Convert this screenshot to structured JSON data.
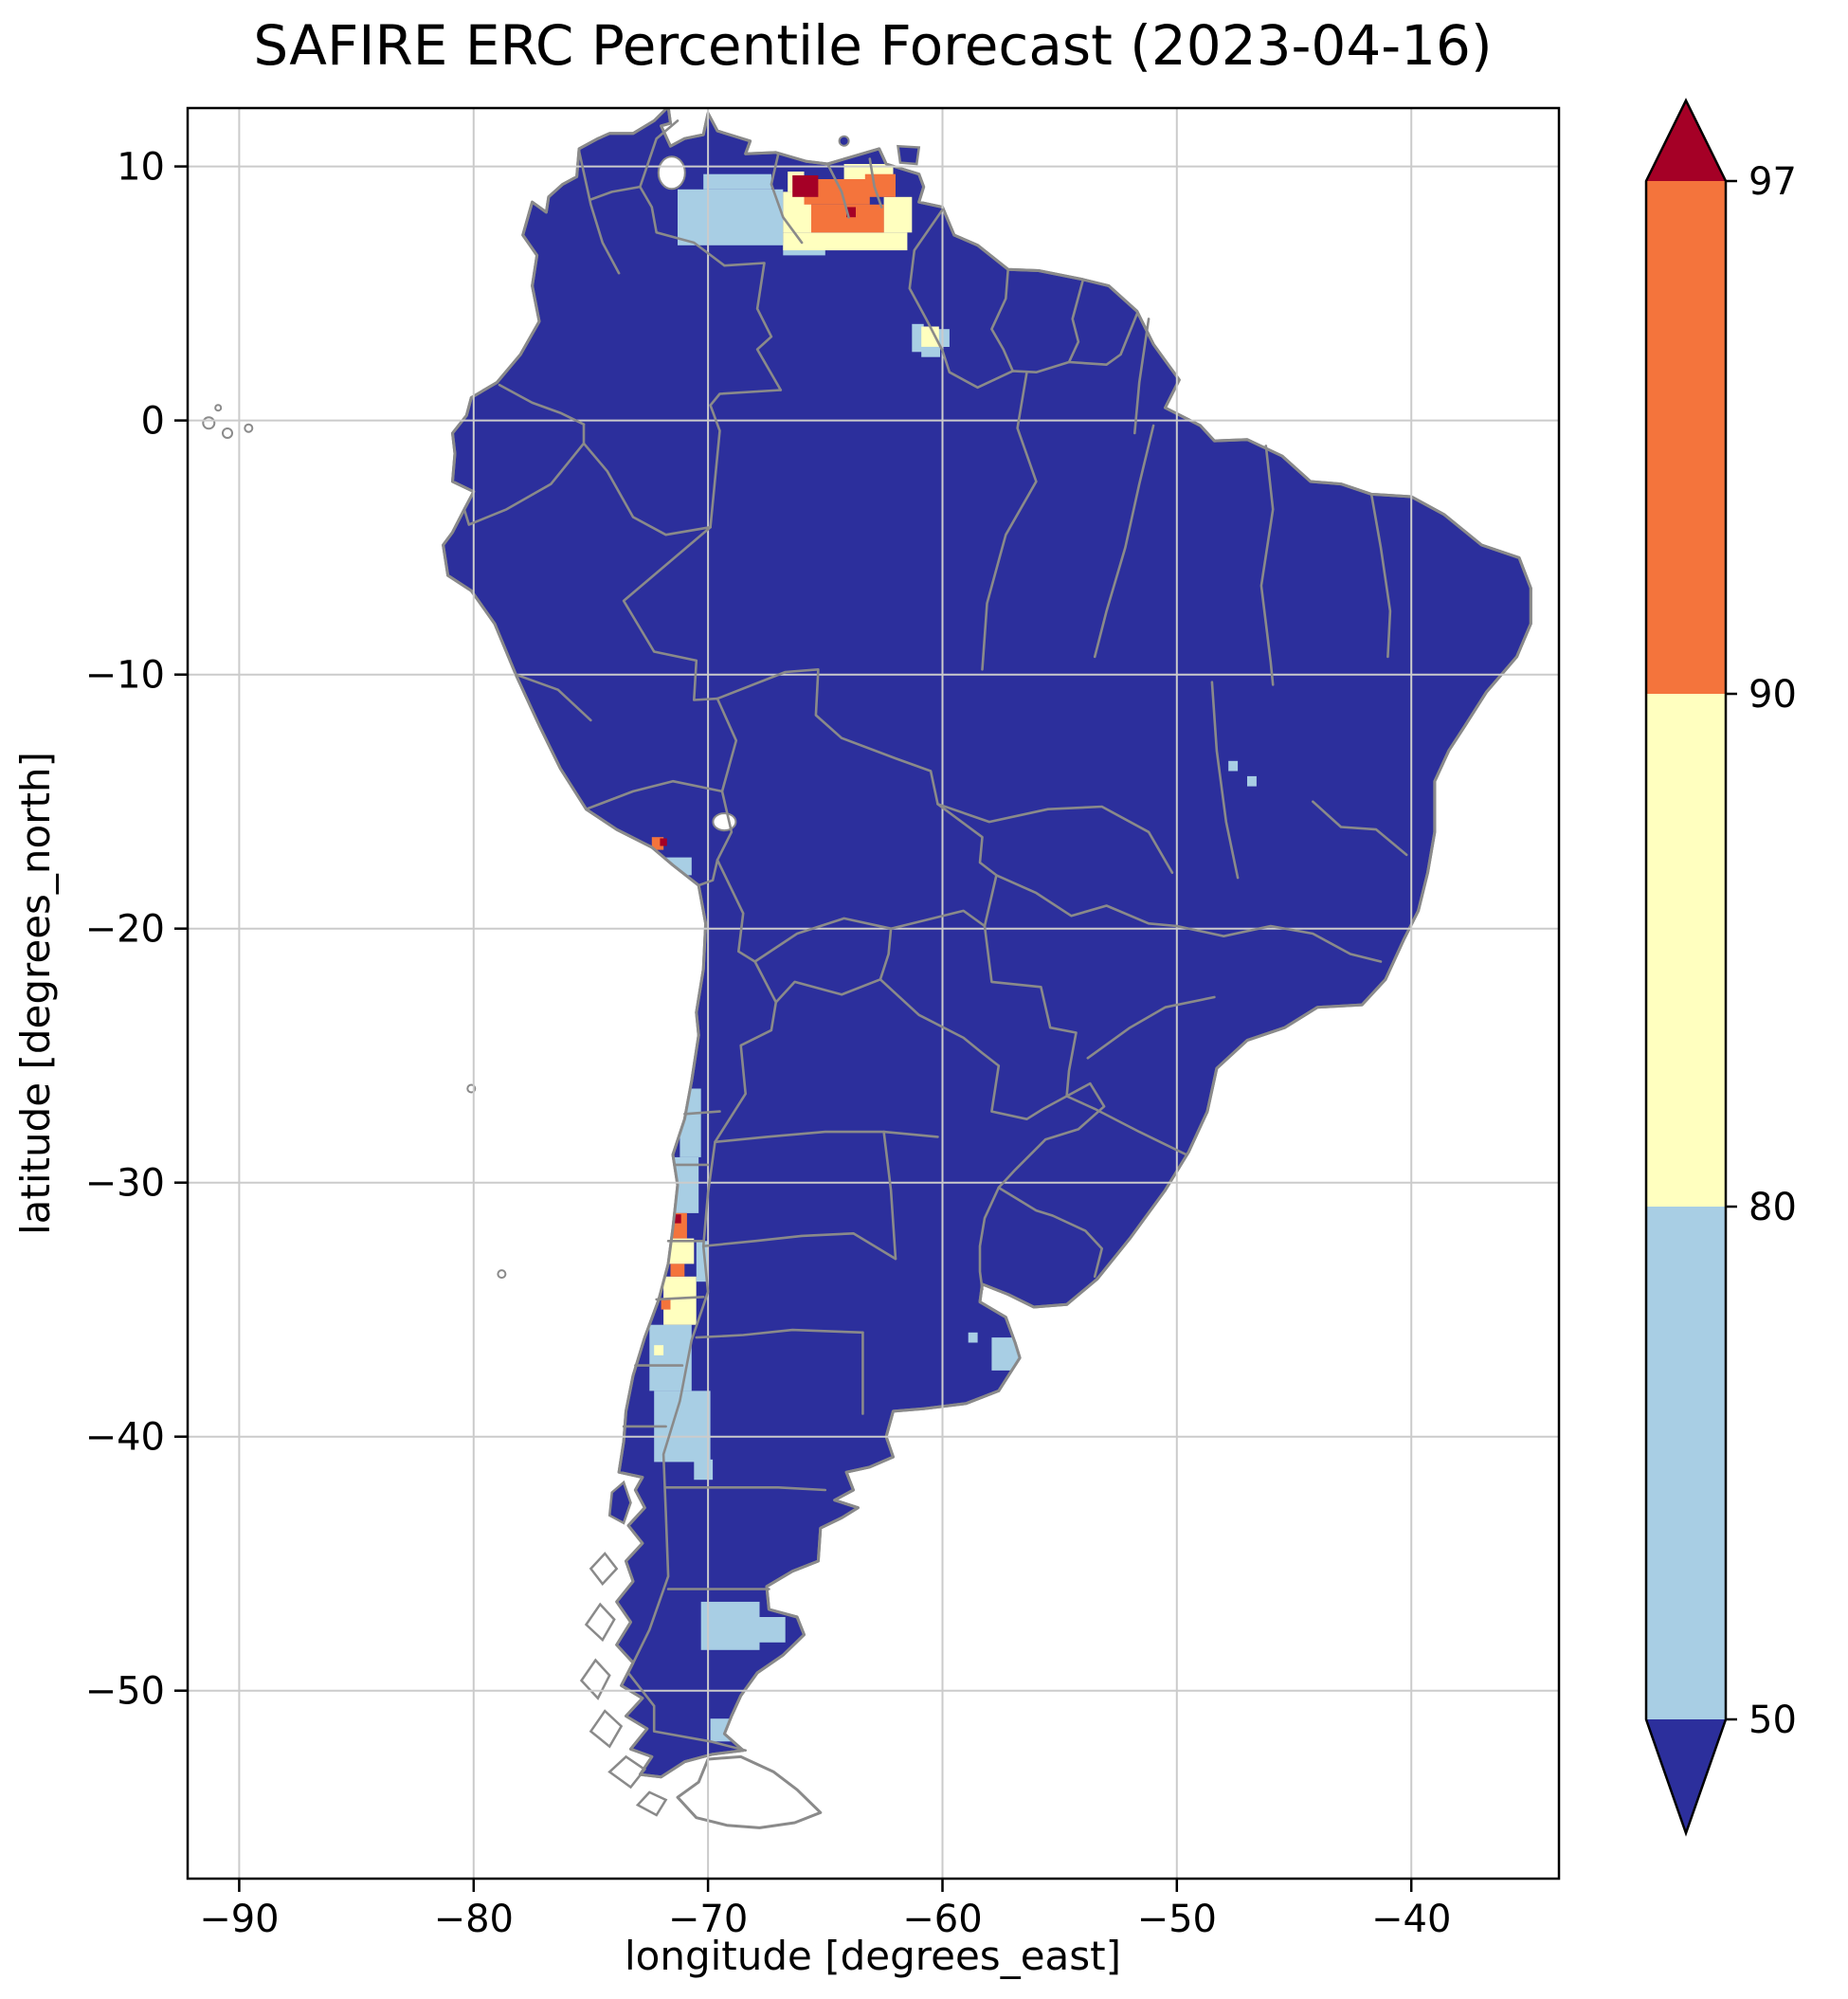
{
  "title": "SAFIRE ERC Percentile Forecast (2023-04-16)",
  "axes": {
    "xlabel": "longitude [degrees_east]",
    "ylabel": "latitude [degrees_north]",
    "xticks": [
      {
        "value": -90,
        "label": "−90"
      },
      {
        "value": -80,
        "label": "−80"
      },
      {
        "value": -70,
        "label": "−70"
      },
      {
        "value": -60,
        "label": "−60"
      },
      {
        "value": -50,
        "label": "−50"
      },
      {
        "value": -40,
        "label": "−40"
      }
    ],
    "yticks": [
      {
        "value": 10,
        "label": "10"
      },
      {
        "value": 0,
        "label": "0"
      },
      {
        "value": -10,
        "label": "−10"
      },
      {
        "value": -20,
        "label": "−20"
      },
      {
        "value": -30,
        "label": "−30"
      },
      {
        "value": -40,
        "label": "−40"
      },
      {
        "value": -50,
        "label": "−50"
      }
    ],
    "xlim_deg": [
      -92.2,
      -33.7
    ],
    "ylim_deg": [
      -57.4,
      12.3
    ],
    "grid": true
  },
  "colorbar": {
    "orientation": "vertical",
    "extend": "both",
    "tick_labels": [
      "97",
      "90",
      "80",
      "50"
    ],
    "boundaries": [
      97,
      90,
      80,
      50
    ],
    "segment_colors_top_to_bottom": [
      "#a50026",
      "#f4743c",
      "#ffffbf",
      "#a8cee4",
      "#2c2f9c"
    ]
  },
  "map_style": {
    "land_fill": "#2c2f9c",
    "coast_color": "#8a8a8a",
    "border_color": "#8a8a8a",
    "grid_color": "#cbcbcb",
    "ocean": "#ffffff",
    "frame_color": "#000000"
  },
  "chart_data": {
    "type": "heatmap",
    "region": "South America",
    "title": "SAFIRE ERC Percentile Forecast (2023-04-16)",
    "xlabel": "longitude [degrees_east]",
    "ylabel": "latitude [degrees_north]",
    "xlim": [
      -92.2,
      -33.7
    ],
    "ylim": [
      -57.4,
      12.3
    ],
    "value_name": "ERC percentile",
    "levels": [
      50,
      80,
      90,
      97
    ],
    "colorbar_extend": "both",
    "legend_position": "right colorbar",
    "grid": true,
    "bands": [
      {
        "id": "under_50",
        "range": "< 50",
        "color": "#2c2f9c"
      },
      {
        "id": "50_80",
        "range": "50–80",
        "color": "#a8cee4"
      },
      {
        "id": "80_90",
        "range": "80–90",
        "color": "#ffffbf"
      },
      {
        "id": "90_97",
        "range": "90–97",
        "color": "#f4743c"
      },
      {
        "id": "over_97",
        "range": "> 97",
        "color": "#a50026"
      }
    ],
    "base_coverage": "all land below 50th percentile (dark blue) except listed regions",
    "regions": [
      {
        "area": "Colombia-Venezuela llanos",
        "band": "50_80",
        "rects": [
          [
            -71.3,
            6.9,
            -66.8,
            9.1
          ],
          [
            -70.2,
            9.1,
            -67.3,
            9.7
          ],
          [
            -66.8,
            6.5,
            -65.0,
            7.0
          ]
        ]
      },
      {
        "area": "central Venezuela",
        "band": "80_90",
        "rects": [
          [
            -66.8,
            6.7,
            -61.5,
            7.4
          ],
          [
            -66.8,
            7.4,
            -65.6,
            9.0
          ],
          [
            -62.5,
            7.4,
            -61.3,
            8.8
          ],
          [
            -64.2,
            9.4,
            -62.1,
            10.1
          ],
          [
            -66.6,
            9.0,
            -65.9,
            9.8
          ]
        ]
      },
      {
        "area": "central Venezuela",
        "band": "90_97",
        "rects": [
          [
            -65.6,
            7.4,
            -62.5,
            8.5
          ],
          [
            -65.9,
            8.5,
            -63.1,
            9.5
          ],
          [
            -63.3,
            8.8,
            -62.0,
            9.7
          ]
        ]
      },
      {
        "area": "central Venezuela hotspot",
        "band": "over_97",
        "rects": [
          [
            -66.4,
            8.8,
            -65.3,
            9.65
          ],
          [
            -64.1,
            8.0,
            -63.7,
            8.4
          ]
        ]
      },
      {
        "area": "Guyana-Roraima border spot",
        "band": "50_80",
        "rects": [
          [
            -61.3,
            2.7,
            -60.8,
            3.8
          ],
          [
            -60.2,
            2.9,
            -59.7,
            3.6
          ],
          [
            -60.9,
            2.5,
            -60.1,
            2.95
          ]
        ]
      },
      {
        "area": "Guyana-Roraima border spot",
        "band": "80_90",
        "rects": [
          [
            -60.9,
            2.9,
            -60.15,
            3.7
          ]
        ]
      },
      {
        "area": "southern Peru coast",
        "band": "90_97",
        "rects": [
          [
            -72.4,
            -16.9,
            -71.9,
            -16.4
          ]
        ]
      },
      {
        "area": "southern Peru coast",
        "band": "over_97",
        "rects": [
          [
            -72.05,
            -16.75,
            -71.75,
            -16.45
          ]
        ]
      },
      {
        "area": "southern Peru",
        "band": "50_80",
        "rects": [
          [
            -71.8,
            -17.9,
            -70.7,
            -17.2
          ]
        ]
      },
      {
        "area": "northern and central Chile strip",
        "band": "50_80",
        "rects": [
          [
            -71.2,
            -29.0,
            -70.3,
            -26.3
          ],
          [
            -71.9,
            -31.2,
            -70.4,
            -29.0
          ],
          [
            -70.5,
            -33.9,
            -70.0,
            -32.3
          ],
          [
            -72.5,
            -38.2,
            -70.7,
            -35.6
          ],
          [
            -72.3,
            -41.0,
            -69.9,
            -38.2
          ],
          [
            -70.6,
            -41.7,
            -69.8,
            -40.9
          ]
        ]
      },
      {
        "area": "central Chile",
        "band": "80_90",
        "rects": [
          [
            -71.7,
            -33.2,
            -70.6,
            -32.2
          ],
          [
            -71.9,
            -35.6,
            -70.5,
            -33.7
          ],
          [
            -72.3,
            -36.8,
            -71.9,
            -36.4
          ]
        ]
      },
      {
        "area": "central Chile",
        "band": "90_97",
        "rects": [
          [
            -71.8,
            -32.2,
            -70.9,
            -31.2
          ],
          [
            -71.6,
            -33.7,
            -71.0,
            -33.2
          ],
          [
            -72.0,
            -35.0,
            -71.6,
            -34.6
          ]
        ]
      },
      {
        "area": "central Chile hotspot",
        "band": "over_97",
        "rects": [
          [
            -71.5,
            -31.6,
            -71.15,
            -31.25
          ]
        ]
      },
      {
        "area": "Buenos Aires coast",
        "band": "50_80",
        "rects": [
          [
            -57.9,
            -37.4,
            -56.1,
            -36.1
          ],
          [
            -56.6,
            -35.5,
            -56.1,
            -35.0
          ],
          [
            -58.9,
            -36.3,
            -58.5,
            -35.9
          ]
        ]
      },
      {
        "area": "central Brazil pixels",
        "band": "50_80",
        "rects": [
          [
            -47.8,
            -13.8,
            -47.4,
            -13.4
          ],
          [
            -47.0,
            -14.4,
            -46.6,
            -14.0
          ]
        ]
      },
      {
        "area": "southern Patagonia lakes district",
        "band": "50_80",
        "rects": [
          [
            -70.3,
            -48.4,
            -67.8,
            -46.5
          ],
          [
            -67.8,
            -48.1,
            -66.7,
            -47.1
          ],
          [
            -69.9,
            -52.0,
            -68.9,
            -51.1
          ]
        ]
      }
    ]
  }
}
